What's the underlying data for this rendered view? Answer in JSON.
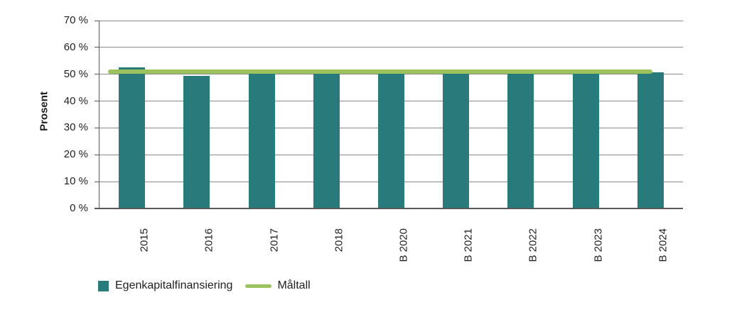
{
  "chart_data": {
    "type": "bar",
    "title": "",
    "xlabel": "",
    "ylabel": "Prosent",
    "categories": [
      "2015",
      "2016",
      "2017",
      "2018",
      "B 2020",
      "B 2021",
      "B 2022",
      "B 2023",
      "B 2024"
    ],
    "series": [
      {
        "name": "Egenkapitalfinansiering",
        "values": [
          52.5,
          49.5,
          50.2,
          50.2,
          50.3,
          50.3,
          50.3,
          50.3,
          50.8
        ]
      }
    ],
    "target": {
      "name": "Måltall",
      "value": 51
    },
    "ylim": [
      0,
      70
    ],
    "y_ticks": [
      {
        "value": 70,
        "label": "70 %"
      },
      {
        "value": 60,
        "label": "60 %"
      },
      {
        "value": 50,
        "label": "50 %"
      },
      {
        "value": 40,
        "label": "40 %"
      },
      {
        "value": 30,
        "label": "30 %"
      },
      {
        "value": 20,
        "label": "20 %"
      },
      {
        "value": 10,
        "label": "10 %"
      },
      {
        "value": 0,
        "label": "0 %"
      }
    ],
    "grid": true,
    "legend_position": "bottom-left",
    "x_tick_rotation_degrees": 90
  },
  "colors": {
    "bar": "#287a7b",
    "target_line": "#9cc25e",
    "axis": "#595959",
    "gridline": "#8a8a8a",
    "text": "#1f1f1f",
    "background": "#ffffff"
  }
}
